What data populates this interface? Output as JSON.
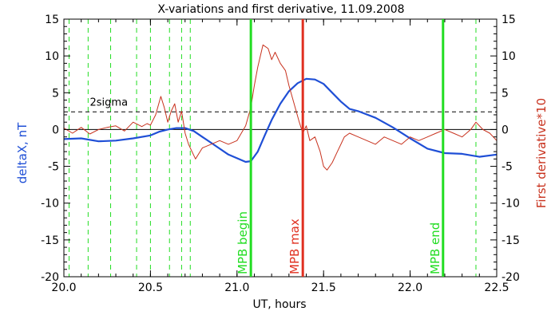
{
  "chart_data": {
    "type": "line",
    "title": "X-variations and first derivative, 11.09.2008",
    "xlabel": "UT, hours",
    "ylabel_left": "deltaX, nT",
    "ylabel_right": "First derivative*10",
    "xlim": [
      20.0,
      22.5
    ],
    "ylim": [
      -20,
      15
    ],
    "x_ticks": [
      "20.0",
      "20.5",
      "21.0",
      "21.5",
      "22.0",
      "22.5"
    ],
    "x_tick_values": [
      20.0,
      20.5,
      21.0,
      21.5,
      22.0,
      22.5
    ],
    "y_ticks": [
      "15",
      "10",
      "5",
      "0",
      "-5",
      "-10",
      "-15",
      "-20"
    ],
    "y_tick_values": [
      15,
      10,
      5,
      0,
      -5,
      -10,
      -15,
      -20
    ],
    "grid": false,
    "series": [
      {
        "name": "deltaX",
        "color": "#1f4fd6",
        "x": [
          20.0,
          20.1,
          20.2,
          20.3,
          20.4,
          20.5,
          20.55,
          20.6,
          20.65,
          20.7,
          20.75,
          20.8,
          20.85,
          20.9,
          20.95,
          21.0,
          21.05,
          21.08,
          21.12,
          21.16,
          21.2,
          21.25,
          21.3,
          21.35,
          21.4,
          21.45,
          21.5,
          21.55,
          21.6,
          21.65,
          21.7,
          21.8,
          21.9,
          22.0,
          22.1,
          22.2,
          22.3,
          22.4,
          22.5
        ],
        "y": [
          -1.3,
          -1.2,
          -1.6,
          -1.5,
          -1.2,
          -0.8,
          -0.3,
          0.0,
          0.2,
          0.2,
          -0.2,
          -1.0,
          -1.8,
          -2.6,
          -3.4,
          -3.9,
          -4.4,
          -4.3,
          -3.0,
          -0.8,
          1.3,
          3.5,
          5.2,
          6.3,
          6.9,
          6.8,
          6.2,
          5.0,
          3.8,
          2.8,
          2.5,
          1.6,
          0.3,
          -1.2,
          -2.6,
          -3.2,
          -3.3,
          -3.7,
          -3.4
        ]
      },
      {
        "name": "First derivative*10",
        "color": "#c8321e",
        "x": [
          20.0,
          20.05,
          20.1,
          20.15,
          20.2,
          20.25,
          20.3,
          20.35,
          20.4,
          20.45,
          20.48,
          20.5,
          20.53,
          20.56,
          20.58,
          20.6,
          20.62,
          20.64,
          20.66,
          20.68,
          20.7,
          20.72,
          20.74,
          20.76,
          20.8,
          20.85,
          20.9,
          20.95,
          21.0,
          21.05,
          21.08,
          21.1,
          21.12,
          21.15,
          21.18,
          21.2,
          21.22,
          21.25,
          21.28,
          21.3,
          21.33,
          21.36,
          21.38,
          21.4,
          21.42,
          21.45,
          21.48,
          21.5,
          21.52,
          21.55,
          21.58,
          21.6,
          21.62,
          21.65,
          21.7,
          21.75,
          21.8,
          21.85,
          21.9,
          21.95,
          22.0,
          22.05,
          22.1,
          22.15,
          22.2,
          22.25,
          22.3,
          22.35,
          22.38,
          22.42,
          22.46,
          22.5
        ],
        "y": [
          0.2,
          -0.5,
          0.3,
          -0.6,
          0.0,
          0.3,
          0.5,
          -0.2,
          1.0,
          0.4,
          0.8,
          0.6,
          2.0,
          4.5,
          3.0,
          1.0,
          2.5,
          3.5,
          1.0,
          2.5,
          -0.5,
          -2.0,
          -3.0,
          -4.0,
          -2.5,
          -2.0,
          -1.5,
          -2.0,
          -1.5,
          0.5,
          3.0,
          6.0,
          8.5,
          11.5,
          11.0,
          9.5,
          10.5,
          9.0,
          8.0,
          6.0,
          3.5,
          1.0,
          -0.5,
          0.5,
          -1.5,
          -1.0,
          -3.0,
          -5.0,
          -5.5,
          -4.5,
          -3.0,
          -2.0,
          -1.0,
          -0.5,
          -1.0,
          -1.5,
          -2.0,
          -1.0,
          -1.5,
          -2.0,
          -1.0,
          -1.5,
          -1.0,
          -0.5,
          0.0,
          -0.5,
          -1.0,
          0.0,
          1.0,
          0.0,
          -0.5,
          -1.5
        ]
      }
    ],
    "hlines": [
      {
        "y": 2.4,
        "style": "dashed",
        "label": "2sigma",
        "label_x": 20.15
      },
      {
        "y": 0,
        "style": "solid"
      }
    ],
    "vlines_dashed": [
      20.03,
      20.14,
      20.27,
      20.42,
      20.5,
      20.61,
      20.68,
      20.73,
      22.38
    ],
    "vlines_labeled": [
      {
        "x": 21.08,
        "color": "#22dd22",
        "label": "MPB begin"
      },
      {
        "x": 21.38,
        "color": "#e03020",
        "label": "MPB max"
      },
      {
        "x": 22.19,
        "color": "#22dd22",
        "label": "MPB end"
      }
    ],
    "dashed_vline_color": "#22dd22"
  }
}
